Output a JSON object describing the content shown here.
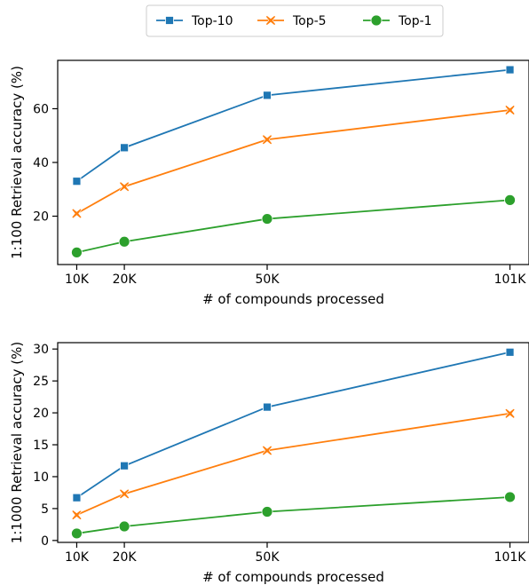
{
  "legend": {
    "placement": "top-center",
    "items": [
      {
        "label": "Top-10",
        "color": "#1f77b4",
        "marker": "square"
      },
      {
        "label": "Top-5",
        "color": "#ff7f0e",
        "marker": "x"
      },
      {
        "label": "Top-1",
        "color": "#2ca02c",
        "marker": "circle"
      }
    ]
  },
  "chart_data": [
    {
      "type": "line",
      "title": "",
      "xlabel": "# of compounds processed",
      "ylabel": "1:100 Retrieval accuracy (%)",
      "x": [
        10,
        20,
        50,
        101
      ],
      "x_tick_labels": [
        "10K",
        "20K",
        "50K",
        "101K"
      ],
      "y_ticks": [
        20,
        40,
        60
      ],
      "xlim": [
        6,
        105
      ],
      "ylim": [
        2,
        78
      ],
      "grid": false,
      "series": [
        {
          "name": "Top-10",
          "color": "#1f77b4",
          "marker": "square",
          "values": [
            33,
            45.5,
            65,
            74.5
          ]
        },
        {
          "name": "Top-5",
          "color": "#ff7f0e",
          "marker": "x",
          "values": [
            21,
            31,
            48.5,
            59.5
          ]
        },
        {
          "name": "Top-1",
          "color": "#2ca02c",
          "marker": "circle",
          "values": [
            6.5,
            10.5,
            19,
            26
          ]
        }
      ]
    },
    {
      "type": "line",
      "title": "",
      "xlabel": "# of compounds processed",
      "ylabel": "1:1000 Retrieval accuracy (%)",
      "x": [
        10,
        20,
        50,
        101
      ],
      "x_tick_labels": [
        "10K",
        "20K",
        "50K",
        "101K"
      ],
      "y_ticks": [
        0,
        5,
        10,
        15,
        20,
        25,
        30
      ],
      "xlim": [
        6,
        105
      ],
      "ylim": [
        -0.3,
        31
      ],
      "grid": false,
      "series": [
        {
          "name": "Top-10",
          "color": "#1f77b4",
          "marker": "square",
          "values": [
            6.7,
            11.7,
            20.9,
            29.5
          ]
        },
        {
          "name": "Top-5",
          "color": "#ff7f0e",
          "marker": "x",
          "values": [
            4.0,
            7.3,
            14.1,
            19.9
          ]
        },
        {
          "name": "Top-1",
          "color": "#2ca02c",
          "marker": "circle",
          "values": [
            1.1,
            2.2,
            4.5,
            6.8
          ]
        }
      ]
    }
  ]
}
